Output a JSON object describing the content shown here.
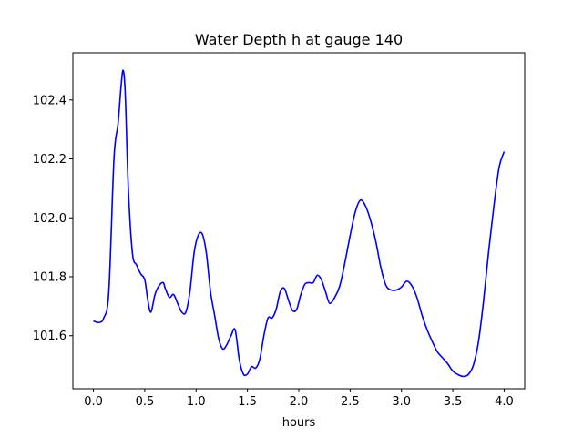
{
  "chart_data": {
    "type": "line",
    "title": "Water Depth h at gauge 140",
    "xlabel": "hours",
    "ylabel": "",
    "xlim": [
      -0.2,
      4.2
    ],
    "ylim": [
      101.42,
      102.56
    ],
    "grid": false,
    "xticks": [
      0.0,
      0.5,
      1.0,
      1.5,
      2.0,
      2.5,
      3.0,
      3.5,
      4.0
    ],
    "xtick_labels": [
      "0.0",
      "0.5",
      "1.0",
      "1.5",
      "2.0",
      "2.5",
      "3.0",
      "3.5",
      "4.0"
    ],
    "yticks": [
      101.6,
      101.8,
      102.0,
      102.2,
      102.4
    ],
    "ytick_labels": [
      "101.6",
      "101.8",
      "102.0",
      "102.2",
      "102.4"
    ],
    "series": [
      {
        "color": "#0000ff",
        "x": [
          0.0,
          0.05,
          0.1,
          0.15,
          0.2,
          0.24,
          0.27,
          0.29,
          0.31,
          0.34,
          0.38,
          0.42,
          0.46,
          0.5,
          0.53,
          0.56,
          0.6,
          0.64,
          0.68,
          0.7,
          0.74,
          0.78,
          0.82,
          0.86,
          0.9,
          0.94,
          0.98,
          1.02,
          1.06,
          1.1,
          1.14,
          1.18,
          1.22,
          1.26,
          1.3,
          1.34,
          1.38,
          1.42,
          1.46,
          1.5,
          1.54,
          1.58,
          1.62,
          1.66,
          1.7,
          1.74,
          1.78,
          1.82,
          1.86,
          1.9,
          1.94,
          1.98,
          2.02,
          2.06,
          2.1,
          2.14,
          2.18,
          2.22,
          2.26,
          2.3,
          2.35,
          2.4,
          2.45,
          2.5,
          2.55,
          2.6,
          2.65,
          2.7,
          2.75,
          2.8,
          2.85,
          2.9,
          2.95,
          3.0,
          3.05,
          3.1,
          3.15,
          3.2,
          3.25,
          3.3,
          3.35,
          3.4,
          3.45,
          3.5,
          3.55,
          3.6,
          3.65,
          3.7,
          3.75,
          3.8,
          3.85,
          3.9,
          3.95,
          4.0
        ],
        "y": [
          101.65,
          101.645,
          101.66,
          101.75,
          102.2,
          102.32,
          102.45,
          102.5,
          102.42,
          102.1,
          101.88,
          101.84,
          101.81,
          101.79,
          101.72,
          101.68,
          101.74,
          101.77,
          101.78,
          101.76,
          101.73,
          101.74,
          101.71,
          101.68,
          101.68,
          101.75,
          101.88,
          101.94,
          101.945,
          101.88,
          101.75,
          101.67,
          101.59,
          101.555,
          101.57,
          101.6,
          101.62,
          101.52,
          101.47,
          101.47,
          101.495,
          101.49,
          101.52,
          101.6,
          101.66,
          101.66,
          101.69,
          101.75,
          101.76,
          101.72,
          101.685,
          101.69,
          101.74,
          101.775,
          101.78,
          101.78,
          101.805,
          101.79,
          101.75,
          101.71,
          101.73,
          101.77,
          101.85,
          101.94,
          102.02,
          102.06,
          102.04,
          101.99,
          101.92,
          101.83,
          101.77,
          101.755,
          101.755,
          101.765,
          101.785,
          101.77,
          101.73,
          101.67,
          101.62,
          101.58,
          101.545,
          101.525,
          101.505,
          101.48,
          101.468,
          101.462,
          101.468,
          101.5,
          101.58,
          101.72,
          101.89,
          102.04,
          102.17,
          102.225
        ]
      }
    ]
  }
}
